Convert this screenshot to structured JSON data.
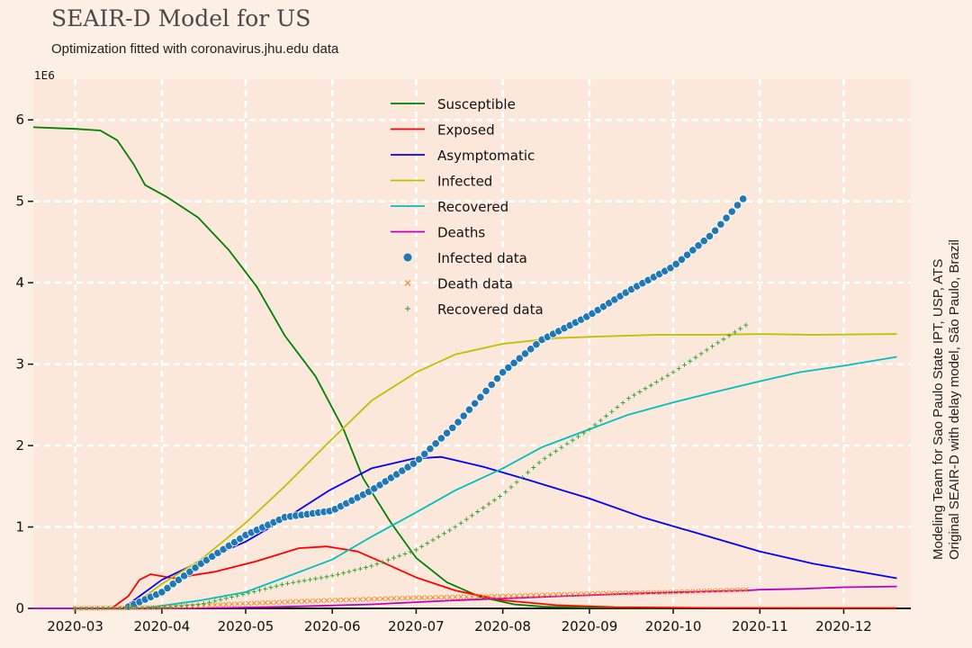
{
  "header": {
    "title": "SEAIR-D Model for US",
    "subtitle": "Optimization fitted with coronavirus.jhu.edu data"
  },
  "side_note": {
    "line1": "Modeling Team for Sao Paulo State IPT, USP, ATS",
    "line2": "Original SEAIR-D with delay model, São Paulo, Brazil"
  },
  "colors": {
    "background": "#fcefe4",
    "plot_background": "#fbe8db",
    "grid": "#ffffff",
    "susceptible": "#008000",
    "exposed": "#ff0000",
    "asymptomatic": "#0000ff",
    "infected": "#bfbf00",
    "recovered": "#00bfbf",
    "deaths": "#bf00bf",
    "infected_data": "#1f77b4",
    "death_data": "#ff7f0e",
    "recovered_data": "#2ca02c"
  },
  "chart_data": {
    "type": "line",
    "title": "SEAIR-D Model for US",
    "subtitle": "Optimization fitted with coronavirus.jhu.edu data",
    "xlabel": "",
    "ylabel": "",
    "y_scale_label": "1E6",
    "x_tick_labels": [
      "2020-03",
      "2020-04",
      "2020-05",
      "2020-06",
      "2020-07",
      "2020-08",
      "2020-09",
      "2020-10",
      "2020-11",
      "2020-12"
    ],
    "x_ticks": [
      "2020-03-01",
      "2020-04-01",
      "2020-05-01",
      "2020-06-01",
      "2020-07-01",
      "2020-08-01",
      "2020-09-01",
      "2020-10-01",
      "2020-11-01",
      "2020-12-01"
    ],
    "y_ticks": [
      0,
      1,
      2,
      3,
      4,
      5,
      6
    ],
    "xlim": [
      "2020-02-15",
      "2020-12-25"
    ],
    "ylim": [
      0,
      6.5
    ],
    "grid": true,
    "legend_position": "top-center",
    "series": [
      {
        "name": "Susceptible",
        "key": "susceptible",
        "kind": "line",
        "x": [
          "2020-02-15",
          "2020-03-01",
          "2020-03-10",
          "2020-03-16",
          "2020-03-22",
          "2020-03-26",
          "2020-04-03",
          "2020-04-14",
          "2020-04-25",
          "2020-05-05",
          "2020-05-15",
          "2020-05-26",
          "2020-06-05",
          "2020-06-12",
          "2020-06-22",
          "2020-07-01",
          "2020-07-12",
          "2020-07-24",
          "2020-08-05",
          "2020-08-16",
          "2020-08-30",
          "2020-09-20",
          "2020-10-15",
          "2020-11-10",
          "2020-12-20"
        ],
        "y": [
          5.91,
          5.89,
          5.87,
          5.75,
          5.45,
          5.2,
          5.05,
          4.8,
          4.4,
          3.95,
          3.35,
          2.85,
          2.2,
          1.6,
          1.05,
          0.62,
          0.32,
          0.14,
          0.05,
          0.02,
          0.01,
          0.005,
          0.005,
          0.005,
          0.005
        ]
      },
      {
        "name": "Exposed",
        "key": "exposed",
        "kind": "line",
        "x": [
          "2020-02-15",
          "2020-03-14",
          "2020-03-20",
          "2020-03-24",
          "2020-03-28",
          "2020-04-05",
          "2020-04-20",
          "2020-05-05",
          "2020-05-20",
          "2020-05-30",
          "2020-06-10",
          "2020-06-20",
          "2020-07-01",
          "2020-07-15",
          "2020-08-01",
          "2020-08-20",
          "2020-09-10",
          "2020-10-15",
          "2020-11-15",
          "2020-12-20"
        ],
        "y": [
          0.0,
          0.0,
          0.15,
          0.35,
          0.42,
          0.37,
          0.45,
          0.58,
          0.74,
          0.76,
          0.7,
          0.55,
          0.38,
          0.22,
          0.1,
          0.04,
          0.015,
          0.005,
          0.002,
          0.001
        ]
      },
      {
        "name": "Asymptomatic",
        "key": "asymptomatic",
        "kind": "line",
        "x": [
          "2020-02-15",
          "2020-03-18",
          "2020-04-01",
          "2020-04-15",
          "2020-05-01",
          "2020-05-15",
          "2020-05-31",
          "2020-06-15",
          "2020-06-30",
          "2020-07-10",
          "2020-07-25",
          "2020-08-10",
          "2020-09-01",
          "2020-09-20",
          "2020-10-10",
          "2020-11-01",
          "2020-11-20",
          "2020-12-20"
        ],
        "y": [
          0.0,
          0.0,
          0.35,
          0.58,
          0.82,
          1.1,
          1.45,
          1.72,
          1.84,
          1.86,
          1.74,
          1.58,
          1.35,
          1.12,
          0.92,
          0.7,
          0.55,
          0.37
        ]
      },
      {
        "name": "Infected",
        "key": "infected",
        "kind": "line",
        "x": [
          "2020-02-15",
          "2020-03-20",
          "2020-04-01",
          "2020-04-15",
          "2020-05-01",
          "2020-05-15",
          "2020-05-31",
          "2020-06-15",
          "2020-07-01",
          "2020-07-15",
          "2020-08-01",
          "2020-08-20",
          "2020-09-05",
          "2020-09-25",
          "2020-10-15",
          "2020-11-01",
          "2020-11-20",
          "2020-12-20"
        ],
        "y": [
          0.0,
          0.0,
          0.3,
          0.6,
          1.05,
          1.5,
          2.05,
          2.55,
          2.9,
          3.12,
          3.25,
          3.32,
          3.34,
          3.36,
          3.36,
          3.37,
          3.36,
          3.37
        ]
      },
      {
        "name": "Recovered",
        "key": "recovered",
        "kind": "line",
        "x": [
          "2020-02-15",
          "2020-03-25",
          "2020-04-15",
          "2020-05-01",
          "2020-05-15",
          "2020-06-01",
          "2020-06-15",
          "2020-07-01",
          "2020-07-15",
          "2020-08-01",
          "2020-08-15",
          "2020-09-01",
          "2020-09-15",
          "2020-10-01",
          "2020-10-15",
          "2020-11-01",
          "2020-11-15",
          "2020-12-01",
          "2020-12-20"
        ],
        "y": [
          0.0,
          0.0,
          0.1,
          0.2,
          0.38,
          0.6,
          0.88,
          1.18,
          1.45,
          1.72,
          1.98,
          2.2,
          2.38,
          2.53,
          2.65,
          2.79,
          2.9,
          2.98,
          3.09
        ]
      },
      {
        "name": "Deaths",
        "key": "deaths",
        "kind": "line",
        "x": [
          "2020-02-15",
          "2020-04-10",
          "2020-05-15",
          "2020-06-15",
          "2020-07-15",
          "2020-08-15",
          "2020-09-15",
          "2020-10-15",
          "2020-10-27",
          "2020-11-01",
          "2020-11-15",
          "2020-12-01",
          "2020-12-20"
        ],
        "y": [
          0.0,
          0.0,
          0.02,
          0.05,
          0.1,
          0.14,
          0.18,
          0.21,
          0.22,
          0.23,
          0.24,
          0.26,
          0.27
        ]
      },
      {
        "name": "Infected data",
        "key": "infected_data",
        "kind": "scatter-dot",
        "x_start": "2020-03-20",
        "x_end": "2020-10-27",
        "step_days": 2,
        "x": [
          "2020-03-20",
          "2020-04-01",
          "2020-04-15",
          "2020-05-01",
          "2020-05-15",
          "2020-06-01",
          "2020-06-15",
          "2020-07-01",
          "2020-07-15",
          "2020-08-01",
          "2020-08-15",
          "2020-09-01",
          "2020-09-15",
          "2020-10-01",
          "2020-10-15",
          "2020-10-27"
        ],
        "y": [
          0.02,
          0.2,
          0.55,
          0.9,
          1.12,
          1.2,
          1.45,
          1.8,
          2.25,
          2.9,
          3.3,
          3.6,
          3.9,
          4.2,
          4.6,
          5.07
        ]
      },
      {
        "name": "Death data",
        "key": "death_data",
        "kind": "scatter-x",
        "x_start": "2020-03-01",
        "x_end": "2020-10-27",
        "step_days": 2,
        "x": [
          "2020-03-01",
          "2020-04-01",
          "2020-05-01",
          "2020-06-01",
          "2020-07-01",
          "2020-08-01",
          "2020-09-01",
          "2020-10-01",
          "2020-10-27"
        ],
        "y": [
          0.0,
          0.01,
          0.06,
          0.1,
          0.13,
          0.15,
          0.18,
          0.2,
          0.23
        ]
      },
      {
        "name": "Recovered data",
        "key": "recovered_data",
        "kind": "scatter-plus",
        "x_start": "2020-03-01",
        "x_end": "2020-10-27",
        "step_days": 2,
        "x": [
          "2020-03-01",
          "2020-04-01",
          "2020-04-15",
          "2020-05-01",
          "2020-05-15",
          "2020-06-01",
          "2020-06-15",
          "2020-07-01",
          "2020-07-15",
          "2020-08-01",
          "2020-08-15",
          "2020-09-01",
          "2020-09-15",
          "2020-10-01",
          "2020-10-15",
          "2020-10-27"
        ],
        "y": [
          0.0,
          0.01,
          0.05,
          0.18,
          0.3,
          0.4,
          0.52,
          0.72,
          1.0,
          1.4,
          1.82,
          2.2,
          2.58,
          2.9,
          3.22,
          3.48
        ]
      }
    ]
  }
}
